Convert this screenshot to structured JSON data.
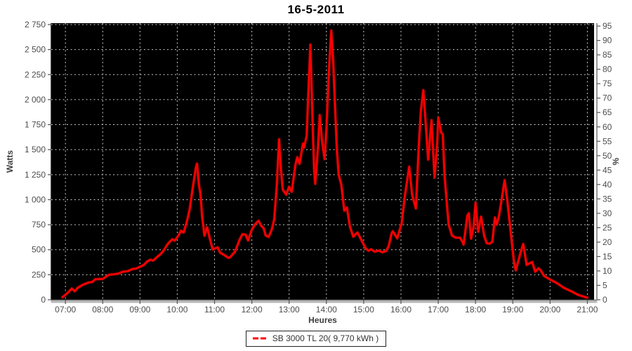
{
  "title": "16-5-2011",
  "legend": {
    "label": "SB 3000 TL 20( 9,770 kWh )"
  },
  "chart_data": {
    "type": "line",
    "title": "16-5-2011",
    "xlabel": "Heures",
    "ylabel_left": "Watts",
    "ylabel_right": "%",
    "xlim": [
      6.62,
      21.18
    ],
    "ylim_left": [
      0,
      2764
    ],
    "ylim_right": [
      0,
      96
    ],
    "grid": true,
    "legend_position": "bottom-center",
    "plot_bg": "#000000",
    "grid_color": "#c9c9c9",
    "axis_color": "#555555",
    "tick_text_color": "#4d4d4d",
    "x_axis": {
      "tick_values": [
        7,
        8,
        9,
        10,
        11,
        12,
        13,
        14,
        15,
        16,
        17,
        18,
        19,
        20,
        21
      ],
      "tick_labels": [
        "07:00",
        "08:00",
        "09:00",
        "10:00",
        "11:00",
        "12:00",
        "13:00",
        "14:00",
        "15:00",
        "16:00",
        "17:00",
        "18:00",
        "19:00",
        "20:00",
        "21:00"
      ]
    },
    "left_axis": {
      "tick_values": [
        0,
        250,
        500,
        750,
        1000,
        1250,
        1500,
        1750,
        2000,
        2250,
        2500,
        2750
      ],
      "tick_labels": [
        "0",
        "250",
        "500",
        "750",
        "1 000",
        "1 250",
        "1 500",
        "1 750",
        "2 000",
        "2 250",
        "2 500",
        "2 750"
      ]
    },
    "right_axis": {
      "tick_values": [
        0,
        5,
        10,
        15,
        20,
        25,
        30,
        35,
        40,
        45,
        50,
        55,
        60,
        65,
        70,
        75,
        80,
        85,
        90,
        95
      ],
      "tick_labels": [
        "0",
        "5",
        "10",
        "15",
        "20",
        "25",
        "30",
        "35",
        "40",
        "45",
        "50",
        "55",
        "60",
        "65",
        "70",
        "75",
        "80",
        "85",
        "90",
        "95"
      ]
    },
    "series": [
      {
        "name": "SB 3000 TL 20( 9,770 kWh )",
        "color": "#ff0000",
        "shadow_color": "#8b0000",
        "points": [
          [
            6.92,
            25
          ],
          [
            7.0,
            50
          ],
          [
            7.08,
            75
          ],
          [
            7.17,
            112
          ],
          [
            7.25,
            85
          ],
          [
            7.33,
            120
          ],
          [
            7.47,
            150
          ],
          [
            7.6,
            170
          ],
          [
            7.72,
            178
          ],
          [
            7.8,
            205
          ],
          [
            8.0,
            208
          ],
          [
            8.08,
            228
          ],
          [
            8.17,
            250
          ],
          [
            8.3,
            255
          ],
          [
            8.42,
            262
          ],
          [
            8.55,
            282
          ],
          [
            8.67,
            285
          ],
          [
            8.78,
            305
          ],
          [
            8.9,
            312
          ],
          [
            9.0,
            330
          ],
          [
            9.1,
            348
          ],
          [
            9.2,
            385
          ],
          [
            9.28,
            400
          ],
          [
            9.35,
            390
          ],
          [
            9.45,
            425
          ],
          [
            9.55,
            455
          ],
          [
            9.65,
            500
          ],
          [
            9.72,
            545
          ],
          [
            9.8,
            580
          ],
          [
            9.87,
            605
          ],
          [
            9.93,
            590
          ],
          [
            10.03,
            640
          ],
          [
            10.1,
            690
          ],
          [
            10.17,
            672
          ],
          [
            10.25,
            770
          ],
          [
            10.33,
            900
          ],
          [
            10.42,
            1130
          ],
          [
            10.5,
            1320
          ],
          [
            10.53,
            1360
          ],
          [
            10.58,
            1150
          ],
          [
            10.62,
            1060
          ],
          [
            10.67,
            820
          ],
          [
            10.73,
            640
          ],
          [
            10.8,
            725
          ],
          [
            10.88,
            600
          ],
          [
            10.95,
            502
          ],
          [
            11.08,
            524
          ],
          [
            11.15,
            470
          ],
          [
            11.23,
            454
          ],
          [
            11.37,
            419
          ],
          [
            11.42,
            425
          ],
          [
            11.55,
            482
          ],
          [
            11.68,
            607
          ],
          [
            11.75,
            656
          ],
          [
            11.83,
            650
          ],
          [
            11.9,
            593
          ],
          [
            12.0,
            700
          ],
          [
            12.1,
            760
          ],
          [
            12.18,
            789
          ],
          [
            12.25,
            740
          ],
          [
            12.32,
            712
          ],
          [
            12.37,
            642
          ],
          [
            12.45,
            628
          ],
          [
            12.53,
            698
          ],
          [
            12.6,
            803
          ],
          [
            12.67,
            1150
          ],
          [
            12.73,
            1605
          ],
          [
            12.78,
            1310
          ],
          [
            12.83,
            1100
          ],
          [
            12.92,
            1050
          ],
          [
            13.0,
            1130
          ],
          [
            13.07,
            1078
          ],
          [
            13.17,
            1350
          ],
          [
            13.22,
            1425
          ],
          [
            13.28,
            1358
          ],
          [
            13.37,
            1560
          ],
          [
            13.4,
            1520
          ],
          [
            13.47,
            1640
          ],
          [
            13.52,
            2100
          ],
          [
            13.57,
            2550
          ],
          [
            13.62,
            1900
          ],
          [
            13.67,
            1300
          ],
          [
            13.7,
            1158
          ],
          [
            13.77,
            1500
          ],
          [
            13.82,
            1845
          ],
          [
            13.88,
            1600
          ],
          [
            13.95,
            1405
          ],
          [
            14.0,
            1700
          ],
          [
            14.07,
            2300
          ],
          [
            14.13,
            2690
          ],
          [
            14.18,
            2400
          ],
          [
            14.23,
            1950
          ],
          [
            14.28,
            1500
          ],
          [
            14.33,
            1250
          ],
          [
            14.4,
            1150
          ],
          [
            14.48,
            890
          ],
          [
            14.55,
            922
          ],
          [
            14.63,
            730
          ],
          [
            14.72,
            630
          ],
          [
            14.83,
            672
          ],
          [
            14.92,
            610
          ],
          [
            15.05,
            515
          ],
          [
            15.13,
            490
          ],
          [
            15.2,
            505
          ],
          [
            15.3,
            480
          ],
          [
            15.4,
            492
          ],
          [
            15.5,
            475
          ],
          [
            15.6,
            487
          ],
          [
            15.67,
            537
          ],
          [
            15.75,
            663
          ],
          [
            15.78,
            685
          ],
          [
            15.9,
            614
          ],
          [
            16.02,
            768
          ],
          [
            16.1,
            1026
          ],
          [
            16.22,
            1330
          ],
          [
            16.3,
            1047
          ],
          [
            16.4,
            912
          ],
          [
            16.47,
            1470
          ],
          [
            16.53,
            1870
          ],
          [
            16.6,
            2095
          ],
          [
            16.67,
            1724
          ],
          [
            16.73,
            1400
          ],
          [
            16.82,
            1795
          ],
          [
            16.9,
            1220
          ],
          [
            16.97,
            1550
          ],
          [
            17.0,
            1820
          ],
          [
            17.08,
            1670
          ],
          [
            17.12,
            1655
          ],
          [
            17.17,
            1240
          ],
          [
            17.22,
            1005
          ],
          [
            17.28,
            750
          ],
          [
            17.37,
            642
          ],
          [
            17.47,
            620
          ],
          [
            17.58,
            620
          ],
          [
            17.65,
            580
          ],
          [
            17.68,
            551
          ],
          [
            17.78,
            840
          ],
          [
            17.82,
            865
          ],
          [
            17.88,
            610
          ],
          [
            17.95,
            730
          ],
          [
            18.0,
            970
          ],
          [
            18.07,
            680
          ],
          [
            18.15,
            830
          ],
          [
            18.23,
            640
          ],
          [
            18.3,
            565
          ],
          [
            18.38,
            560
          ],
          [
            18.45,
            580
          ],
          [
            18.52,
            822
          ],
          [
            18.57,
            750
          ],
          [
            18.63,
            838
          ],
          [
            18.7,
            1000
          ],
          [
            18.78,
            1195
          ],
          [
            18.85,
            1000
          ],
          [
            18.93,
            726
          ],
          [
            19.03,
            377
          ],
          [
            19.08,
            293
          ],
          [
            19.19,
            447
          ],
          [
            19.28,
            558
          ],
          [
            19.37,
            349
          ],
          [
            19.45,
            365
          ],
          [
            19.52,
            377
          ],
          [
            19.6,
            280
          ],
          [
            19.69,
            314
          ],
          [
            19.75,
            293
          ],
          [
            19.84,
            237
          ],
          [
            20.0,
            202
          ],
          [
            20.18,
            167
          ],
          [
            20.37,
            119
          ],
          [
            20.57,
            84
          ],
          [
            20.75,
            49
          ],
          [
            20.93,
            28
          ],
          [
            21.0,
            22
          ]
        ]
      }
    ]
  }
}
